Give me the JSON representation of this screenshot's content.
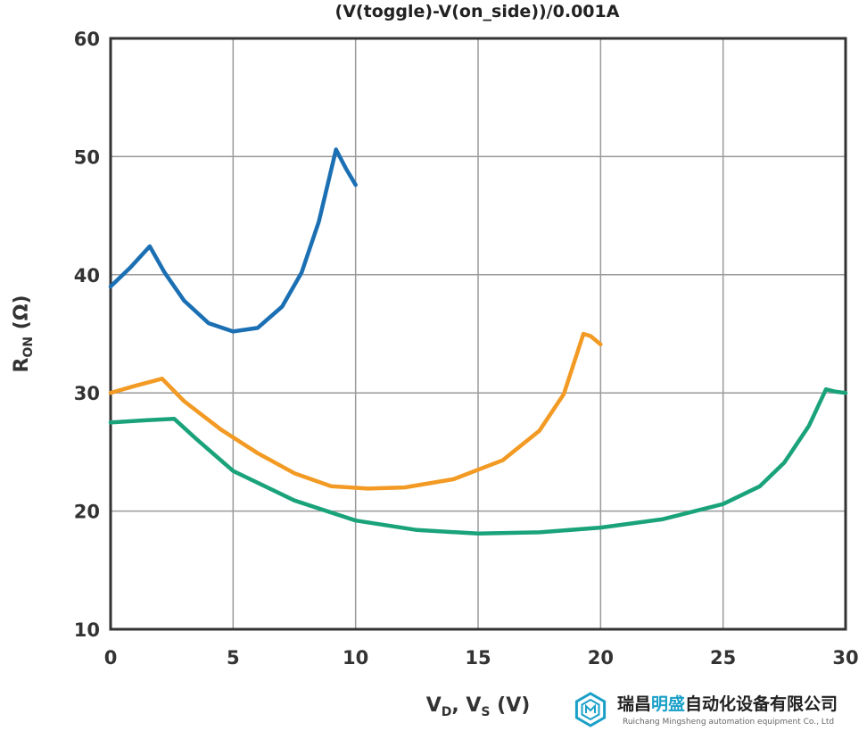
{
  "chart_data": {
    "type": "line",
    "title": "(V(toggle)-V(on_side))/0.001A",
    "ylabel": {
      "main": "R",
      "sub": "ON",
      "unit": " (Ω)"
    },
    "xlabel": {
      "v1": "V",
      "s1": "D",
      "sep": ", V",
      "s2": "S",
      "unit": " (V)"
    },
    "xlim": [
      0,
      30
    ],
    "ylim": [
      10,
      60
    ],
    "x_ticks": [
      0,
      5,
      10,
      15,
      20,
      25,
      30
    ],
    "y_ticks": [
      10,
      20,
      30,
      40,
      50,
      60
    ],
    "grid": true,
    "series": [
      {
        "color": "#1b6fb3",
        "points": [
          [
            0,
            39
          ],
          [
            0.8,
            40.6
          ],
          [
            1.6,
            42.4
          ],
          [
            2.2,
            40.2
          ],
          [
            3,
            37.8
          ],
          [
            4,
            35.9
          ],
          [
            5,
            35.2
          ],
          [
            6,
            35.5
          ],
          [
            7,
            37.3
          ],
          [
            7.8,
            40.2
          ],
          [
            8.5,
            44.5
          ],
          [
            9.2,
            50.6
          ],
          [
            9.6,
            49
          ],
          [
            10,
            47.6
          ]
        ]
      },
      {
        "color": "#f29a23",
        "points": [
          [
            0,
            30
          ],
          [
            1,
            30.6
          ],
          [
            2.1,
            31.2
          ],
          [
            3,
            29.3
          ],
          [
            4.5,
            26.9
          ],
          [
            6,
            24.9
          ],
          [
            7.5,
            23.2
          ],
          [
            9,
            22.1
          ],
          [
            10.5,
            21.9
          ],
          [
            12,
            22
          ],
          [
            14,
            22.7
          ],
          [
            16,
            24.3
          ],
          [
            17.5,
            26.8
          ],
          [
            18.5,
            29.9
          ],
          [
            19.3,
            35
          ],
          [
            19.6,
            34.8
          ],
          [
            20,
            34.1
          ]
        ]
      },
      {
        "color": "#1aa37a",
        "points": [
          [
            0,
            27.5
          ],
          [
            1.5,
            27.7
          ],
          [
            2.6,
            27.8
          ],
          [
            3.5,
            26.1
          ],
          [
            5,
            23.4
          ],
          [
            7.5,
            20.9
          ],
          [
            10,
            19.2
          ],
          [
            12.5,
            18.4
          ],
          [
            15,
            18.1
          ],
          [
            17.5,
            18.2
          ],
          [
            20,
            18.6
          ],
          [
            22.5,
            19.3
          ],
          [
            25,
            20.6
          ],
          [
            26.5,
            22.1
          ],
          [
            27.5,
            24.1
          ],
          [
            28.5,
            27.2
          ],
          [
            29.2,
            30.3
          ],
          [
            29.6,
            30.1
          ],
          [
            30,
            30
          ]
        ]
      }
    ]
  },
  "logo": {
    "chinese_prefix": "瑞昌",
    "chinese_highlight": "明盛",
    "chinese_suffix": "自动化设备有限公司",
    "english": "Ruichang Mingsheng automation equipment Co., Ltd",
    "highlight_color": "#1aa0c8"
  }
}
